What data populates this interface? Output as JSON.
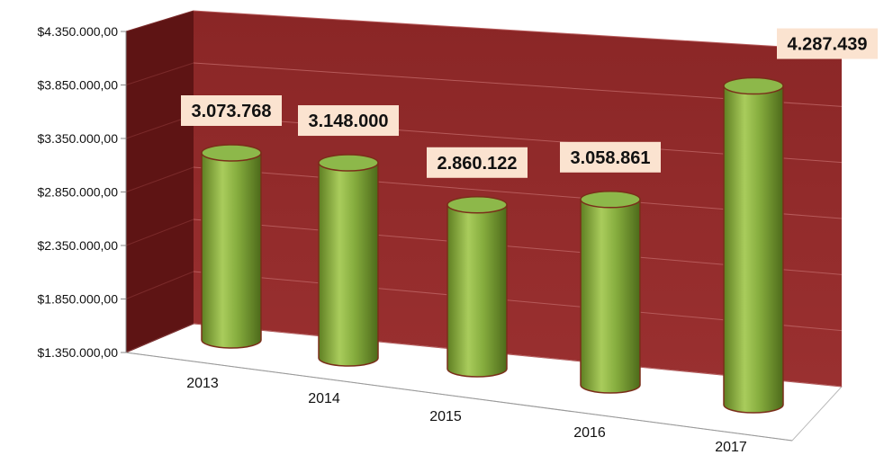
{
  "chart_data": {
    "type": "bar",
    "style": "3d-cylinder",
    "categories": [
      "2013",
      "2014",
      "2015",
      "2016",
      "2017"
    ],
    "values": [
      3073768,
      3148000,
      2860122,
      3058861,
      4287439
    ],
    "data_labels": [
      "3.073.768",
      "3.148.000",
      "2.860.122",
      "3.058.861",
      "4.287.439"
    ],
    "y_ticks": [
      "$1.350.000,00",
      "$1.850.000,00",
      "$2.350.000,00",
      "$2.850.000,00",
      "$3.350.000,00",
      "$3.850.000,00",
      "$4.350.000,00"
    ],
    "ylim": [
      1350000,
      4350000
    ],
    "grid": true,
    "legend": "none",
    "colors": {
      "wall": "#8f2a2a",
      "side_wall": "#5e1414",
      "floor": "#ffffff",
      "bar": "#7ea336",
      "bar_top": "#8db84a",
      "bar_edge": "#7a2e1a",
      "label_box": "#fbe3d0"
    }
  }
}
